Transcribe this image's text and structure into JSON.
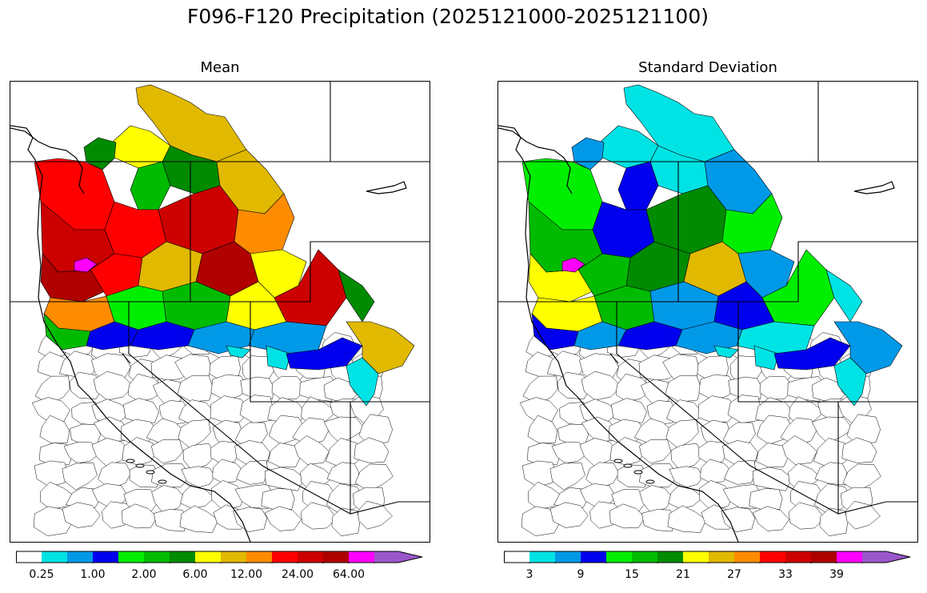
{
  "suptitle": "F096-F120 Precipitation (2025121000-2025121100)",
  "panels": [
    {
      "title": "Mean",
      "colors": [
        "#ffffff",
        "#00e3e5",
        "#0099e8",
        "#0000ee",
        "#00ee00",
        "#00bb00",
        "#008b00",
        "#ffff00",
        "#e1b900",
        "#ff8c00",
        "#ff0000",
        "#cd0000",
        "#b00000",
        "#ff00ff",
        "#9a57c9"
      ],
      "tick_labels": [
        "0.25",
        "1.00",
        "2.00",
        "6.00",
        "12.00",
        "24.00",
        "64.00"
      ]
    },
    {
      "title": "Standard Deviation",
      "colors": [
        "#ffffff",
        "#00e3e5",
        "#0099e8",
        "#0000ee",
        "#00ee00",
        "#00bb00",
        "#008b00",
        "#ffff00",
        "#e1b900",
        "#ff8c00",
        "#ff0000",
        "#cd0000",
        "#b00000",
        "#ff00ff",
        "#9a57c9"
      ],
      "tick_labels": [
        "3",
        "9",
        "15",
        "21",
        "27",
        "33",
        "39"
      ]
    }
  ]
}
